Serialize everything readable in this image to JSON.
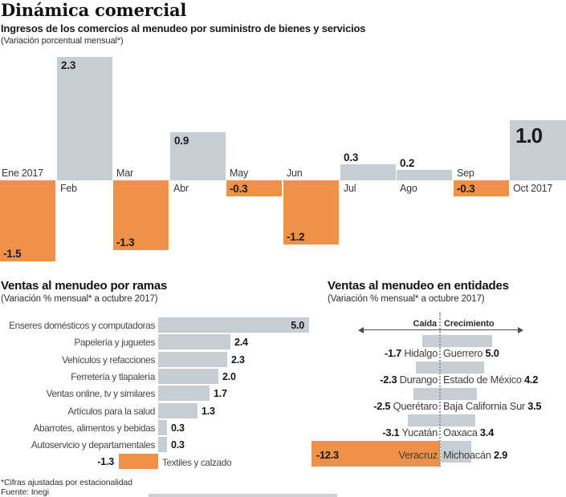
{
  "header": {
    "title": "Dinámica comercial",
    "subtitle": "Ingresos de los comercios al menudeo por suministro de bienes y servicios",
    "note": "(Variación porcentual mensual*)"
  },
  "colors": {
    "bar_gray": "#c6cdd3",
    "bar_orange": "#f0914a",
    "text_dark": "#1d1d1d"
  },
  "chart_data": [
    {
      "type": "bar",
      "id": "monthly-variation",
      "categories": [
        "Ene 2017",
        "Feb",
        "Mar",
        "Abr",
        "May",
        "Jun",
        "Jul",
        "Ago",
        "Sep",
        "Oct 2017"
      ],
      "values": [
        -1.5,
        2.3,
        -1.3,
        0.9,
        -0.3,
        -1.2,
        0.3,
        0.2,
        -0.3,
        1.0
      ],
      "highlight_category": "Oct 2017",
      "positive_color": "#c6cdd3",
      "negative_color": "#f0914a",
      "baseline": 0,
      "legend": "none",
      "grid": false
    },
    {
      "type": "bar",
      "id": "ramas",
      "orientation": "horizontal",
      "title": "Ventas al menudeo por ramas",
      "subtitle": "(Variación % mensual* a octubre 2017)",
      "categories": [
        "Enseres domésticos y computadoras",
        "Papelería y juguetes",
        "Vehículos y refacciones",
        "Ferretería y tlapalería",
        "Ventas online, tv y similares",
        "Artículos para la salud",
        "Abarrotes, alimentos y bebidas",
        "Autoservicio y departamentales",
        "Textiles y calzado"
      ],
      "values": [
        5.0,
        2.4,
        2.3,
        2.0,
        1.7,
        1.3,
        0.3,
        0.3,
        -1.3
      ],
      "positive_color": "#c6cdd3",
      "negative_color": "#f0914a",
      "grid": false
    },
    {
      "type": "diverging-bar",
      "id": "entidades",
      "title": "Ventas al menudeo en entidades",
      "subtitle": "(Variación % mensual* a octubre 2017)",
      "axis_labels": {
        "left": "Caída",
        "right": "Crecimiento"
      },
      "rows": [
        {
          "fall_state": "Hidalgo",
          "fall_value": -1.7,
          "growth_state": "Guerrero",
          "growth_value": 5.0
        },
        {
          "fall_state": "Durango",
          "fall_value": -2.3,
          "growth_state": "Estado de México",
          "growth_value": 4.2
        },
        {
          "fall_state": "Querétaro",
          "fall_value": -2.5,
          "growth_state": "Baja California Sur",
          "growth_value": 3.5
        },
        {
          "fall_state": "Yucatán",
          "fall_value": -3.1,
          "growth_state": "Oaxaca",
          "growth_value": 3.4
        },
        {
          "fall_state": "Veracruz",
          "fall_value": -12.3,
          "growth_state": "Michoacán",
          "growth_value": 2.9,
          "highlight": true
        }
      ]
    }
  ],
  "footer": {
    "note": "*Cifras ajustadas por estacionalidad",
    "source": "Fuente: Inegi"
  }
}
